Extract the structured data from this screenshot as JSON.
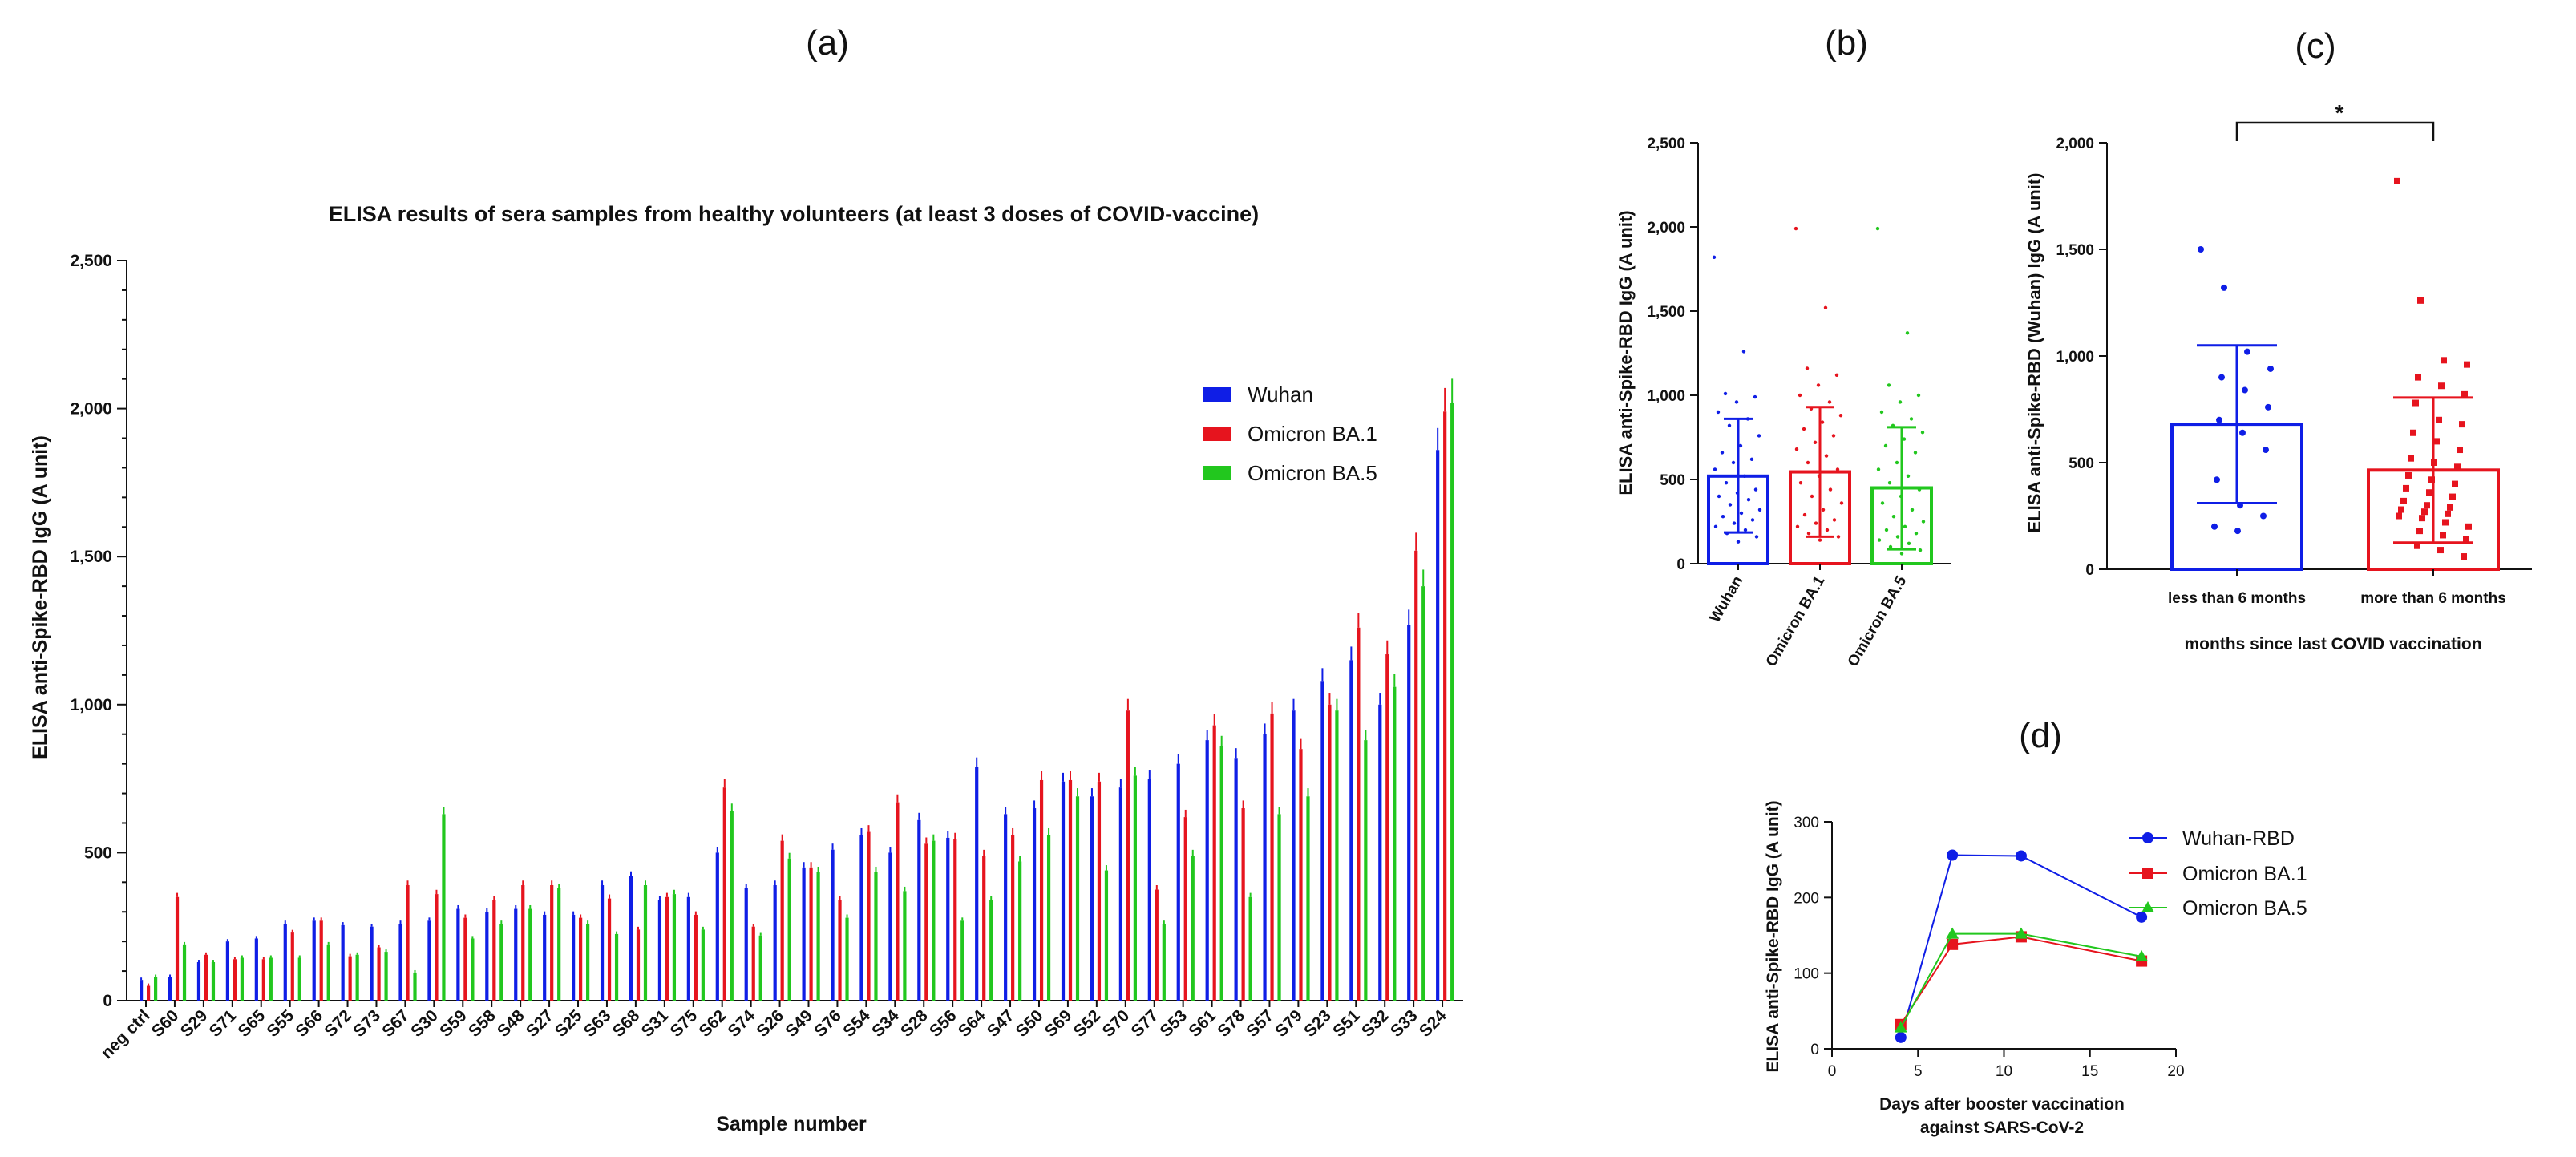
{
  "colors": {
    "wuhan": "#0f1ee6",
    "ba1": "#e6141e",
    "ba5": "#22c71e",
    "axis": "#111111"
  },
  "panel_labels": {
    "a": "(a)",
    "b": "(b)",
    "c": "(c)",
    "d": "(d)"
  },
  "chart_data": [
    {
      "id": "a",
      "type": "bar",
      "title": "ELISA results of sera samples from healthy volunteers (at least 3 doses of COVID-vaccine)",
      "xlabel": "Sample number",
      "ylabel": "ELISA anti-Spike-RBD IgG (A unit)",
      "ylim": [
        0,
        2500
      ],
      "yticks": [
        0,
        500,
        1000,
        1500,
        2000,
        2500
      ],
      "ytick_labels": [
        "0",
        "500",
        "1,000",
        "1,500",
        "2,000",
        "2,500"
      ],
      "legend_position": "right",
      "categories": [
        "neg ctrl",
        "S60",
        "S29",
        "S71",
        "S65",
        "S55",
        "S66",
        "S72",
        "S73",
        "S67",
        "S30",
        "S59",
        "S58",
        "S48",
        "S27",
        "S25",
        "S63",
        "S68",
        "S31",
        "S75",
        "S62",
        "S74",
        "S26",
        "S49",
        "S76",
        "S54",
        "S34",
        "S28",
        "S56",
        "S64",
        "S47",
        "S50",
        "S69",
        "S52",
        "S70",
        "S77",
        "S53",
        "S61",
        "S78",
        "S57",
        "S79",
        "S23",
        "S51",
        "S32",
        "S33",
        "S24"
      ],
      "tick_every": 1,
      "series": [
        {
          "name": "Wuhan",
          "values": [
            70,
            80,
            130,
            200,
            210,
            260,
            270,
            255,
            250,
            260,
            270,
            310,
            300,
            310,
            290,
            290,
            390,
            420,
            340,
            350,
            500,
            380,
            390,
            450,
            510,
            560,
            500,
            610,
            550,
            790,
            630,
            650,
            740,
            690,
            720,
            750,
            800,
            880,
            820,
            900,
            980,
            1080,
            1150,
            1000,
            1270,
            1860
          ]
        },
        {
          "name": "Omicron BA.1",
          "values": [
            50,
            350,
            155,
            140,
            140,
            230,
            270,
            150,
            180,
            390,
            360,
            280,
            340,
            390,
            390,
            280,
            345,
            240,
            350,
            290,
            720,
            250,
            540,
            450,
            340,
            570,
            670,
            530,
            545,
            490,
            560,
            745,
            745,
            740,
            980,
            375,
            620,
            930,
            650,
            970,
            850,
            1000,
            1260,
            1170,
            1520,
            1990
          ]
        },
        {
          "name": "Omicron BA.5",
          "values": [
            80,
            190,
            130,
            145,
            145,
            145,
            190,
            155,
            165,
            95,
            630,
            210,
            260,
            310,
            380,
            260,
            225,
            390,
            360,
            240,
            640,
            220,
            480,
            435,
            280,
            435,
            370,
            540,
            270,
            340,
            470,
            560,
            690,
            440,
            760,
            260,
            490,
            860,
            350,
            630,
            690,
            980,
            880,
            1060,
            1400,
            2020
          ]
        }
      ]
    },
    {
      "id": "b",
      "type": "bar",
      "ylabel": "ELISA anti-Spike-RBD IgG (A unit)",
      "ylim": [
        0,
        2500
      ],
      "yticks": [
        0,
        500,
        1000,
        1500,
        2000,
        2500
      ],
      "ytick_labels": [
        "0",
        "500",
        "1,000",
        "1,500",
        "2,000",
        "2,500"
      ],
      "categories": [
        "Wuhan",
        "Omicron BA.1",
        "Omicron BA.5"
      ],
      "means": [
        520,
        545,
        450
      ],
      "sd_low": [
        185,
        160,
        85
      ],
      "sd_high": [
        860,
        930,
        810
      ],
      "points": [
        [
          1820,
          1260,
          1010,
          990,
          960,
          900,
          860,
          820,
          760,
          700,
          660,
          620,
          600,
          560,
          520,
          480,
          440,
          420,
          400,
          380,
          350,
          320,
          300,
          280,
          260,
          240,
          220,
          200,
          180,
          160,
          130
        ],
        [
          1990,
          1520,
          1160,
          1120,
          1060,
          1000,
          960,
          920,
          880,
          840,
          800,
          760,
          720,
          680,
          640,
          600,
          560,
          520,
          480,
          440,
          400,
          360,
          320,
          290,
          260,
          240,
          220,
          200,
          180,
          160,
          140
        ],
        [
          1990,
          1370,
          1060,
          1000,
          960,
          900,
          860,
          820,
          780,
          740,
          700,
          660,
          600,
          560,
          520,
          480,
          440,
          400,
          360,
          320,
          280,
          250,
          220,
          200,
          180,
          160,
          140,
          120,
          100,
          80,
          60
        ]
      ]
    },
    {
      "id": "c",
      "type": "bar",
      "ylabel": "ELISA anti-Spike-RBD (Wuhan) IgG (A unit)",
      "xlabel": "months since last COVID vaccination",
      "ylim": [
        0,
        2000
      ],
      "yticks": [
        0,
        500,
        1000,
        1500,
        2000
      ],
      "ytick_labels": [
        "0",
        "500",
        "1,000",
        "1,500",
        "2,000"
      ],
      "categories": [
        "less than 6 months",
        "more than 6 months"
      ],
      "means": [
        680,
        465
      ],
      "sd_low": [
        310,
        125
      ],
      "sd_high": [
        1050,
        805
      ],
      "significance": "*",
      "points": [
        [
          1500,
          1320,
          1020,
          940,
          900,
          840,
          760,
          700,
          640,
          560,
          420,
          300,
          250,
          200,
          180
        ],
        [
          1820,
          1260,
          980,
          960,
          900,
          860,
          820,
          780,
          700,
          680,
          640,
          600,
          560,
          520,
          500,
          480,
          440,
          420,
          400,
          380,
          360,
          340,
          320,
          300,
          290,
          280,
          270,
          260,
          250,
          240,
          220,
          200,
          180,
          160,
          140,
          110,
          90,
          60
        ]
      ]
    },
    {
      "id": "d",
      "type": "line",
      "xlabel_lines": [
        "Days after booster vaccination",
        "against SARS-CoV-2"
      ],
      "ylabel": "ELISA anti-Spike-RBD IgG (A unit)",
      "xlim": [
        0,
        20
      ],
      "ylim": [
        0,
        300
      ],
      "xticks": [
        0,
        5,
        10,
        15,
        20
      ],
      "yticks": [
        0,
        100,
        200,
        300
      ],
      "legend_position": "right",
      "x": [
        4,
        7,
        11,
        18
      ],
      "series": [
        {
          "name": "Wuhan-RBD",
          "values": [
            15,
            256,
            255,
            174
          ]
        },
        {
          "name": "Omicron BA.1",
          "values": [
            32,
            138,
            148,
            116
          ]
        },
        {
          "name": "Omicron BA.5",
          "values": [
            28,
            152,
            152,
            122
          ]
        }
      ]
    }
  ]
}
